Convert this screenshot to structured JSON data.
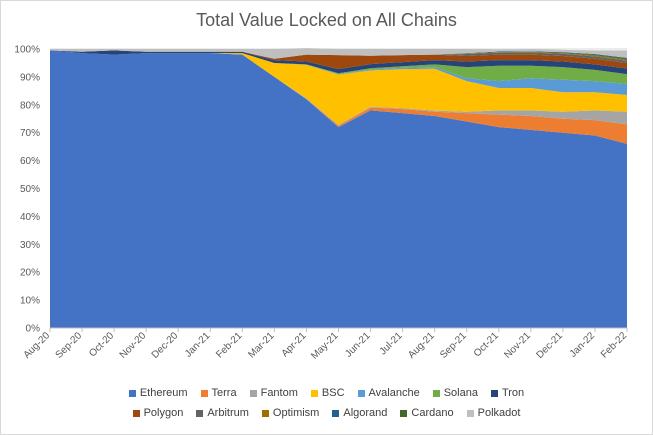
{
  "chart_data": {
    "type": "area",
    "stacked": "percent",
    "title": "Total Value Locked on All Chains",
    "xlabel": "",
    "ylabel": "",
    "ylim": [
      0,
      100
    ],
    "y_ticks": [
      "0%",
      "10%",
      "20%",
      "30%",
      "40%",
      "50%",
      "60%",
      "70%",
      "80%",
      "90%",
      "100%"
    ],
    "x": [
      "Aug-20",
      "Sep-20",
      "Oct-20",
      "Nov-20",
      "Dec-20",
      "Jan-21",
      "Feb-21",
      "Mar-21",
      "Apr-21",
      "May-21",
      "Jun-21",
      "Jul-21",
      "Aug-21",
      "Sep-21",
      "Oct-21",
      "Nov-21",
      "Dec-21",
      "Jan-22",
      "Feb-22"
    ],
    "legend_position": "bottom",
    "grid": "horizontal",
    "series": [
      {
        "name": "Ethereum",
        "color": "#4472c4",
        "values": [
          99.5,
          98.5,
          98.0,
          98.5,
          98.5,
          98.5,
          98.0,
          90.0,
          82.0,
          72.0,
          78.0,
          77.0,
          76.0,
          74.0,
          72.0,
          71.0,
          70.0,
          69.0,
          66.0
        ]
      },
      {
        "name": "Terra",
        "color": "#ed7d31",
        "values": [
          0,
          0,
          0,
          0,
          0,
          0,
          0,
          0,
          0,
          0.5,
          1.0,
          1.5,
          1.5,
          3.0,
          4.5,
          5.0,
          5.0,
          5.5,
          7.0
        ]
      },
      {
        "name": "Fantom",
        "color": "#a5a5a5",
        "values": [
          0,
          0,
          0,
          0,
          0,
          0,
          0,
          0,
          0.3,
          0.3,
          0.3,
          0.3,
          0.4,
          0.5,
          1.5,
          2.0,
          2.5,
          3.5,
          4.5
        ]
      },
      {
        "name": "BSC",
        "color": "#ffc000",
        "values": [
          0,
          0,
          0,
          0,
          0,
          0,
          0.5,
          5.0,
          12.0,
          18.0,
          13.0,
          14.0,
          15.0,
          11.0,
          8.0,
          8.0,
          7.0,
          6.5,
          6.0
        ]
      },
      {
        "name": "Avalanche",
        "color": "#5b9bd5",
        "values": [
          0,
          0,
          0,
          0,
          0,
          0,
          0,
          0,
          0,
          0.2,
          0.3,
          0.5,
          0.6,
          1.0,
          2.5,
          3.5,
          4.5,
          4.0,
          4.0
        ]
      },
      {
        "name": "Solana",
        "color": "#70ad47",
        "values": [
          0,
          0,
          0,
          0,
          0,
          0,
          0,
          0,
          0.2,
          0.3,
          0.5,
          0.5,
          1.0,
          4.0,
          5.5,
          4.5,
          4.5,
          4.0,
          3.5
        ]
      },
      {
        "name": "Tron",
        "color": "#264478",
        "values": [
          0,
          0.5,
          1.5,
          0.5,
          0.5,
          0.5,
          0.5,
          1.0,
          1.0,
          1.5,
          1.5,
          1.5,
          1.5,
          2.0,
          2.0,
          2.0,
          2.0,
          2.0,
          2.0
        ]
      },
      {
        "name": "Polygon",
        "color": "#9e480e",
        "values": [
          0,
          0,
          0,
          0,
          0,
          0,
          0,
          0.5,
          2.5,
          5.0,
          3.0,
          2.5,
          2.0,
          2.0,
          2.0,
          2.0,
          2.0,
          2.0,
          2.0
        ]
      },
      {
        "name": "Arbitrum",
        "color": "#636363",
        "values": [
          0,
          0,
          0,
          0,
          0,
          0,
          0,
          0,
          0,
          0,
          0,
          0,
          0,
          0.7,
          0.7,
          0.7,
          0.8,
          0.8,
          0.8
        ]
      },
      {
        "name": "Optimism",
        "color": "#997300",
        "values": [
          0,
          0,
          0,
          0,
          0,
          0,
          0,
          0,
          0,
          0,
          0,
          0,
          0,
          0.2,
          0.2,
          0.3,
          0.3,
          0.4,
          0.4
        ]
      },
      {
        "name": "Algorand",
        "color": "#255e91",
        "values": [
          0,
          0,
          0,
          0,
          0,
          0,
          0,
          0,
          0,
          0,
          0,
          0,
          0,
          0.1,
          0.2,
          0.2,
          0.3,
          0.3,
          0.3
        ]
      },
      {
        "name": "Cardano",
        "color": "#43682b",
        "values": [
          0,
          0,
          0,
          0,
          0,
          0,
          0,
          0,
          0,
          0,
          0,
          0,
          0,
          0,
          0,
          0,
          0,
          0.2,
          0.3
        ]
      },
      {
        "name": "Polkadot",
        "color": "#bfbfbf",
        "values": [
          0.5,
          1.0,
          0.5,
          1.0,
          1.0,
          1.0,
          1.0,
          3.5,
          2.3,
          2.2,
          2.4,
          2.2,
          2.0,
          1.5,
          0.7,
          0.8,
          0.8,
          1.3,
          2.7
        ]
      }
    ]
  }
}
